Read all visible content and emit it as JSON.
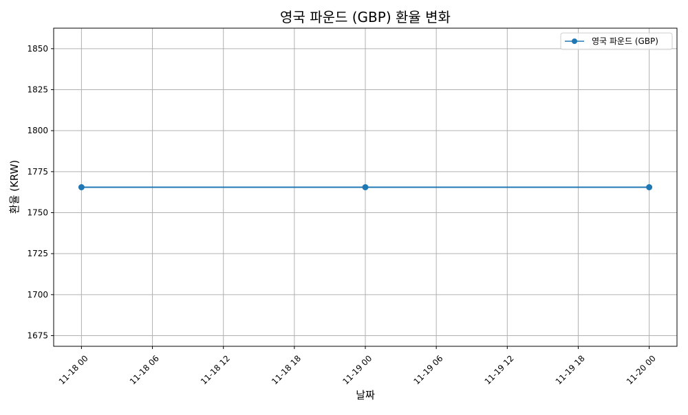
{
  "chart_data": {
    "type": "line",
    "title": "영국 파운드 (GBP) 환율 변화",
    "xlabel": "날짜",
    "ylabel": "환율 (KRW)",
    "x": [
      "11-18 00",
      "11-19 00",
      "11-20 00"
    ],
    "x_hours": [
      0,
      24,
      48
    ],
    "x_ticks": [
      "11-18 00",
      "11-18 06",
      "11-18 12",
      "11-18 18",
      "11-19 00",
      "11-19 06",
      "11-19 12",
      "11-19 18",
      "11-20 00"
    ],
    "y_ticks": [
      1675,
      1700,
      1725,
      1750,
      1775,
      1800,
      1825,
      1850
    ],
    "xlim_hours": [
      -2.35,
      50.35
    ],
    "ylim": [
      1668.5,
      1862.5
    ],
    "series": [
      {
        "name": "영국 파운드 (GBP)",
        "values": [
          1765.5,
          1765.5,
          1765.5
        ],
        "color": "#1f77b4"
      }
    ],
    "grid": true,
    "legend_position": "top-right"
  }
}
